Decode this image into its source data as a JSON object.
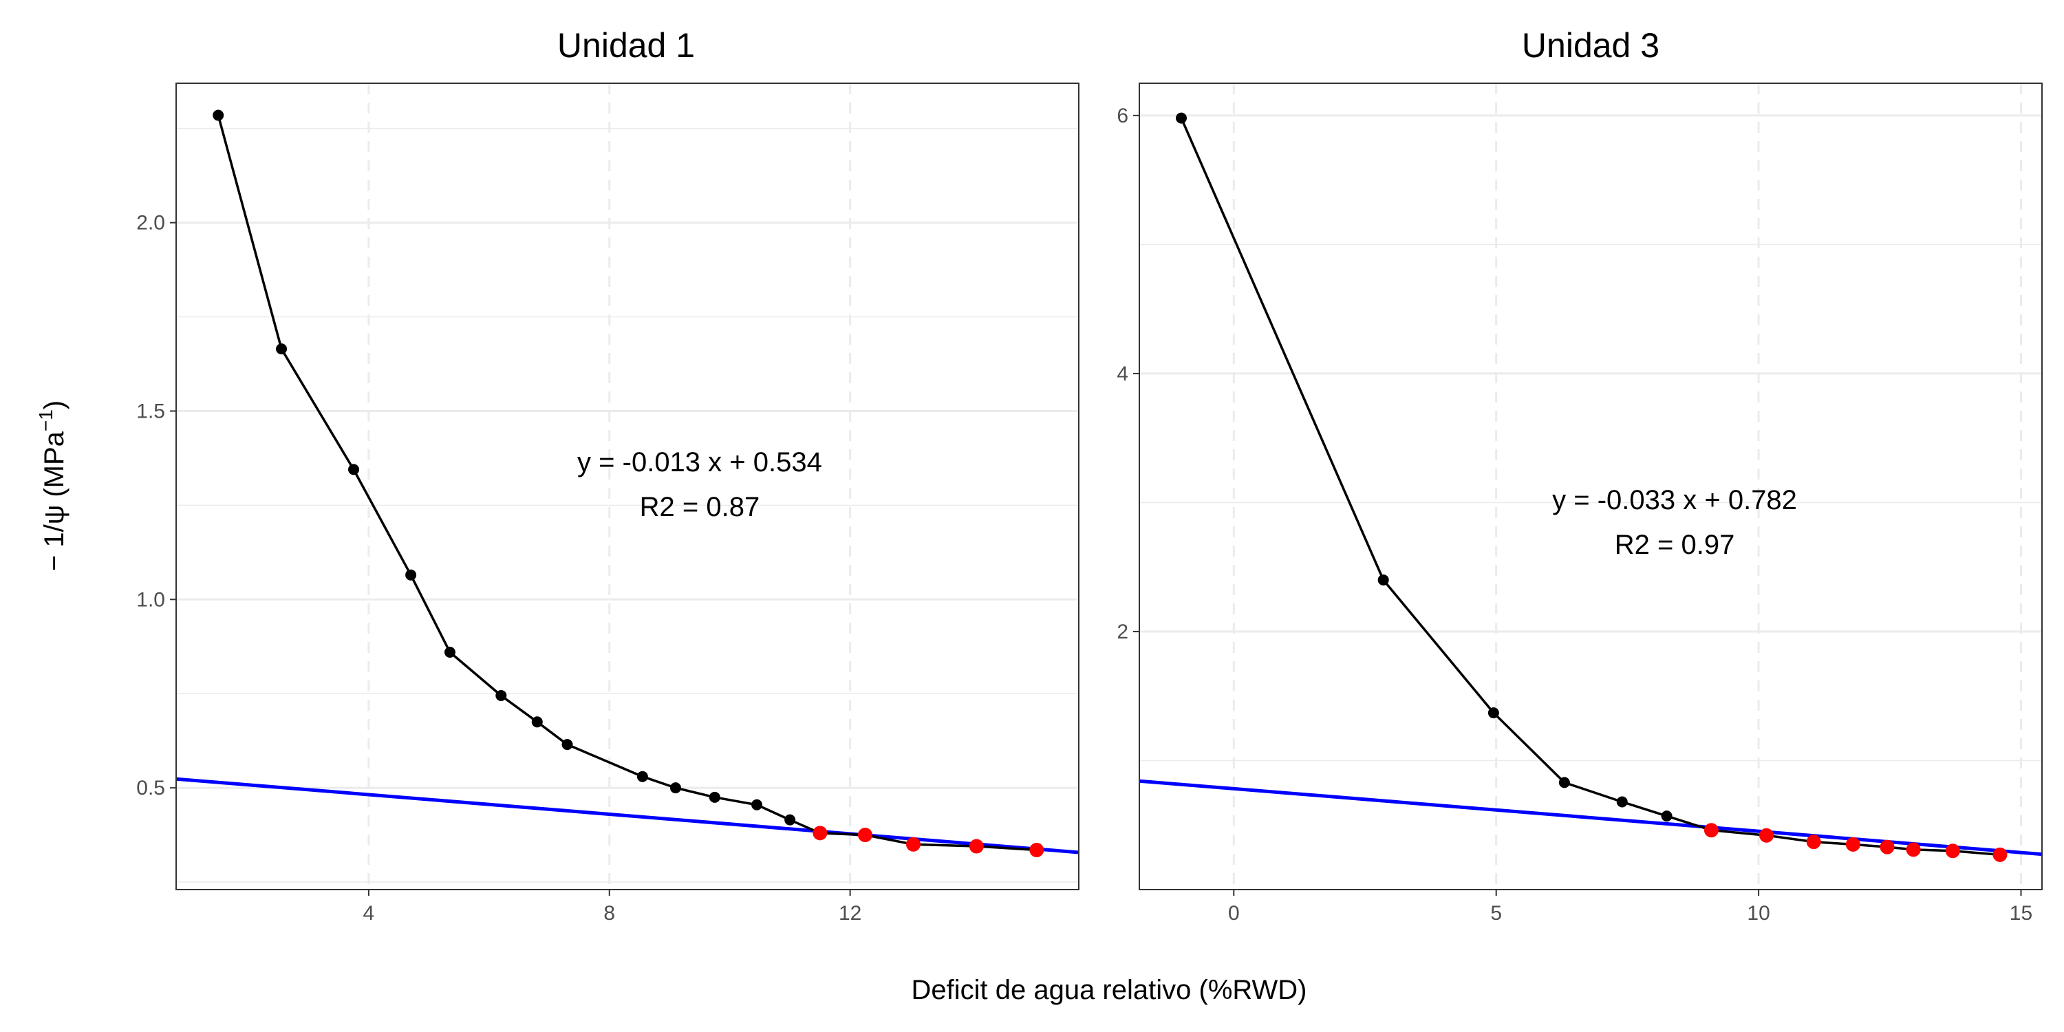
{
  "figure": {
    "xlabel": "Deficit de agua relativo (%RWD)",
    "ylabel_prefix": "− 1/ψ (MPa",
    "ylabel_sup": "−1",
    "ylabel_suffix": ")"
  },
  "colors": {
    "points": "#000000",
    "tlp_points": "#ff0000",
    "fit_line": "#0000ff",
    "grid": "#ebebeb",
    "border": "#333333"
  },
  "chart_data": [
    {
      "type": "line",
      "title": "Unidad 1",
      "xlim": [
        0.8,
        15.8
      ],
      "ylim": [
        0.23,
        2.37
      ],
      "xticks": [
        4,
        8,
        12
      ],
      "xtick_labels": [
        "4",
        "8",
        "12"
      ],
      "yticks": [
        0.5,
        1.0,
        1.5,
        2.0
      ],
      "ytick_labels": [
        "0.5",
        "1.0",
        "1.5",
        "2.0"
      ],
      "series": [
        {
          "name": "curve",
          "x": [
            1.5,
            2.55,
            3.75,
            4.7,
            5.35,
            6.2,
            6.8,
            7.3,
            8.55,
            9.1,
            9.75,
            10.45,
            11.0,
            11.5,
            12.25,
            13.05,
            14.1,
            15.1
          ],
          "y": [
            2.285,
            1.665,
            1.345,
            1.065,
            0.86,
            0.745,
            0.675,
            0.615,
            0.53,
            0.5,
            0.475,
            0.455,
            0.415,
            0.38,
            0.375,
            0.35,
            0.345,
            0.335
          ],
          "red_from": 13
        }
      ],
      "fit": {
        "slope": -0.013,
        "intercept": 0.534
      },
      "equation": "y = -0.013 x + 0.534",
      "r2": "R2  = 0.87",
      "annotation_at": [
        9.5,
        1.34
      ]
    },
    {
      "type": "line",
      "title": "Unidad 3",
      "xlim": [
        -1.8,
        15.4
      ],
      "ylim": [
        0.0,
        6.25
      ],
      "xticks": [
        0,
        5,
        10,
        15
      ],
      "xtick_labels": [
        "0",
        "5",
        "10",
        "15"
      ],
      "yticks": [
        2,
        4,
        6
      ],
      "ytick_labels": [
        "2",
        "4",
        "6"
      ],
      "series": [
        {
          "name": "curve",
          "x": [
            -1.0,
            2.85,
            4.95,
            6.3,
            7.4,
            8.25,
            9.1,
            10.15,
            11.05,
            11.8,
            12.45,
            12.95,
            13.7,
            14.6
          ],
          "y": [
            5.98,
            2.4,
            1.37,
            0.83,
            0.68,
            0.57,
            0.46,
            0.42,
            0.37,
            0.35,
            0.33,
            0.31,
            0.3,
            0.27
          ],
          "red_from": 6
        }
      ],
      "fit": {
        "slope": -0.033,
        "intercept": 0.782
      },
      "equation": "y = -0.033 x + 0.782",
      "r2": "R2  = 0.97",
      "annotation_at": [
        8.4,
        2.95
      ]
    }
  ]
}
